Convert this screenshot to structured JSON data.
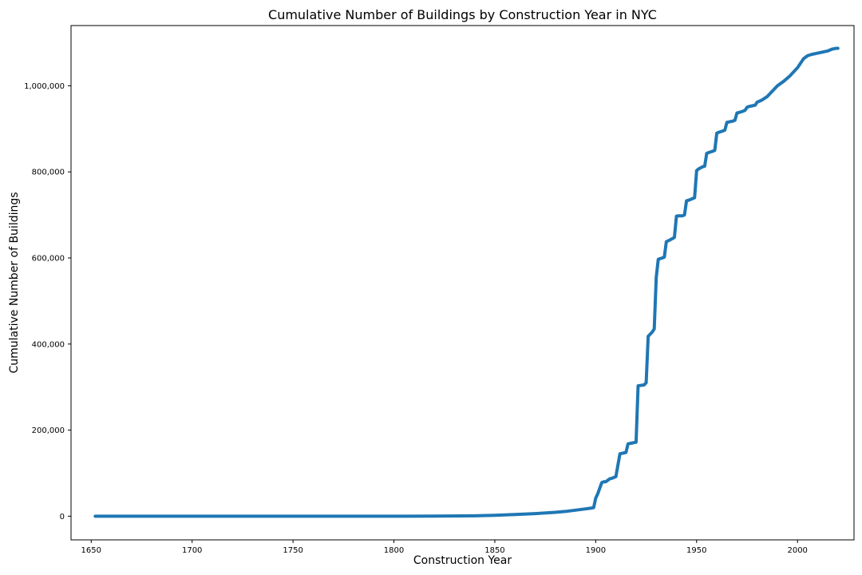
{
  "chart_data": {
    "type": "line",
    "title": "Cumulative Number of Buildings by Construction Year in NYC",
    "xlabel": "Construction Year",
    "ylabel": "Cumulative Number of Buildings",
    "xlim": [
      1640,
      2028
    ],
    "ylim": [
      -55000,
      1140000
    ],
    "x_ticks": [
      1650,
      1700,
      1750,
      1800,
      1850,
      1900,
      1950,
      2000
    ],
    "x_tick_labels": [
      "1650",
      "1700",
      "1750",
      "1800",
      "1850",
      "1900",
      "1950",
      "2000"
    ],
    "y_ticks": [
      0,
      200000,
      400000,
      600000,
      800000,
      1000000
    ],
    "y_tick_labels": [
      "0",
      "200,000",
      "400,000",
      "600,000",
      "800,000",
      "1,000,000"
    ],
    "grid": false,
    "legend": "none",
    "line_color": "#1f77b4",
    "series": [
      {
        "x": [
          1652,
          1700,
          1750,
          1800,
          1820,
          1840,
          1850,
          1860,
          1870,
          1880,
          1885,
          1890,
          1895,
          1898,
          1899,
          1900,
          1901,
          1903,
          1904,
          1905,
          1907,
          1908,
          1909,
          1910,
          1912,
          1913,
          1914,
          1915,
          1916,
          1918,
          1919,
          1920,
          1921,
          1924,
          1925,
          1926,
          1928,
          1929,
          1930,
          1931,
          1933,
          1934,
          1935,
          1936,
          1938,
          1939,
          1940,
          1941,
          1943,
          1944,
          1945,
          1946,
          1948,
          1949,
          1950,
          1951,
          1953,
          1954,
          1955,
          1956,
          1958,
          1959,
          1960,
          1961,
          1963,
          1964,
          1965,
          1966,
          1968,
          1969,
          1970,
          1971,
          1973,
          1974,
          1975,
          1976,
          1978,
          1979,
          1980,
          1982,
          1985,
          1988,
          1990,
          1993,
          1996,
          2000,
          2003,
          2005,
          2007,
          2009,
          2012,
          2015,
          2017,
          2019,
          2020
        ],
        "y": [
          0,
          0,
          0,
          0,
          200,
          800,
          2000,
          4000,
          6000,
          9000,
          11000,
          14000,
          17000,
          19000,
          20000,
          42000,
          52000,
          78000,
          80000,
          80000,
          87000,
          88000,
          90000,
          92000,
          145000,
          146000,
          147000,
          148000,
          168000,
          170000,
          171000,
          172000,
          303000,
          305000,
          310000,
          418000,
          428000,
          435000,
          555000,
          597000,
          600000,
          602000,
          638000,
          640000,
          645000,
          648000,
          697000,
          698000,
          698000,
          700000,
          733000,
          734000,
          738000,
          740000,
          803000,
          807000,
          812000,
          813000,
          843000,
          845000,
          848000,
          850000,
          890000,
          892000,
          895000,
          897000,
          915000,
          916000,
          918000,
          920000,
          937000,
          938000,
          941000,
          943000,
          950000,
          952000,
          954000,
          955000,
          962000,
          966000,
          975000,
          990000,
          1000000,
          1010000,
          1022000,
          1042000,
          1063000,
          1070000,
          1073000,
          1075000,
          1078000,
          1081000,
          1085000,
          1087000,
          1087000
        ]
      }
    ]
  }
}
